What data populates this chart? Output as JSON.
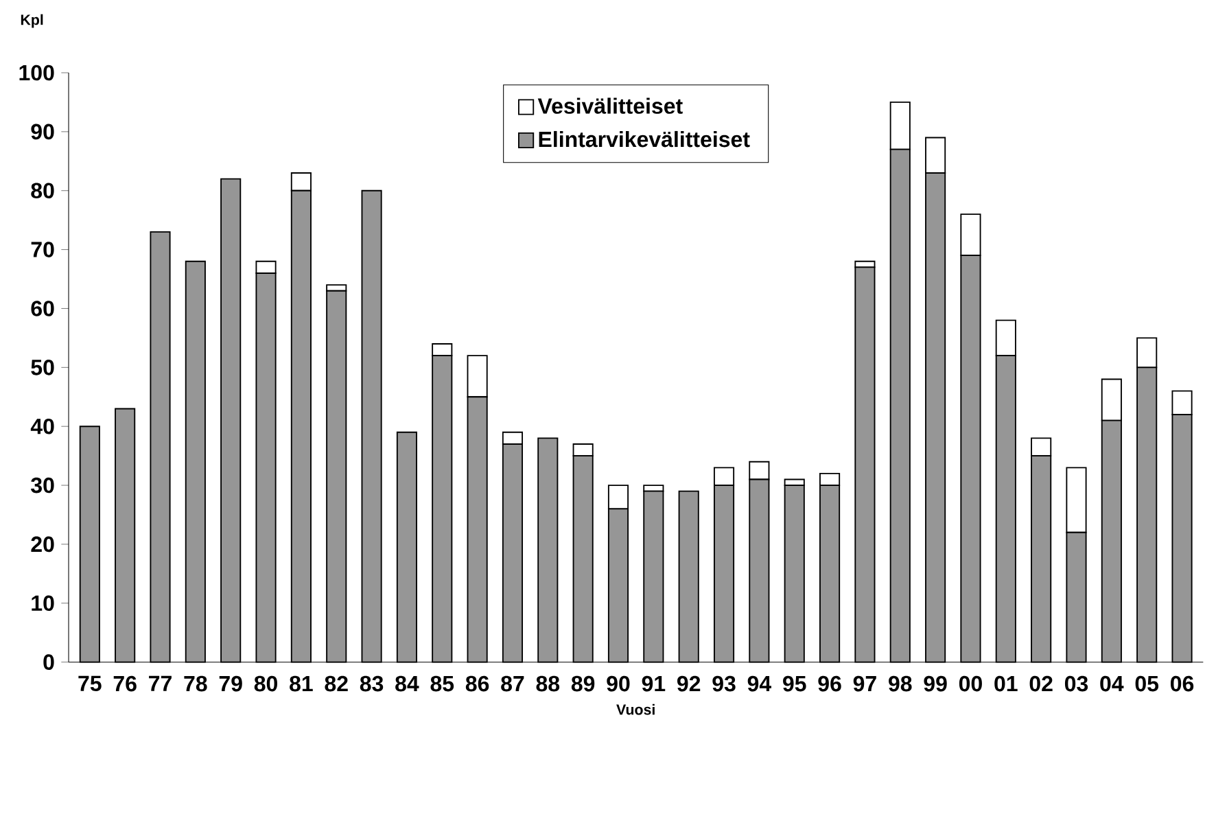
{
  "chart_data": {
    "type": "bar",
    "stacked": true,
    "xlabel": "Vuosi",
    "ylabel": "Kpl",
    "categories": [
      "75",
      "76",
      "77",
      "78",
      "79",
      "80",
      "81",
      "82",
      "83",
      "84",
      "85",
      "86",
      "87",
      "88",
      "89",
      "90",
      "91",
      "92",
      "93",
      "94",
      "95",
      "96",
      "97",
      "98",
      "99",
      "00",
      "01",
      "02",
      "03",
      "04",
      "05",
      "06"
    ],
    "series": [
      {
        "name": "Elintarvikevälitteiset",
        "color": "#969696",
        "values": [
          40,
          43,
          73,
          68,
          82,
          66,
          80,
          63,
          80,
          39,
          52,
          45,
          37,
          38,
          35,
          26,
          29,
          29,
          30,
          31,
          30,
          30,
          67,
          87,
          83,
          69,
          52,
          35,
          22,
          41,
          50,
          42
        ]
      },
      {
        "name": "Vesivälitteiset",
        "color": "#ffffff",
        "values": [
          0,
          0,
          0,
          0,
          0,
          2,
          3,
          1,
          0,
          0,
          2,
          7,
          2,
          0,
          2,
          4,
          1,
          0,
          3,
          3,
          1,
          2,
          1,
          8,
          6,
          7,
          6,
          3,
          11,
          7,
          5,
          4
        ]
      }
    ],
    "ylim": [
      0,
      100
    ],
    "yticks": [
      0,
      10,
      20,
      30,
      40,
      50,
      60,
      70,
      80,
      90,
      100
    ],
    "grid": false,
    "legend": "top"
  }
}
